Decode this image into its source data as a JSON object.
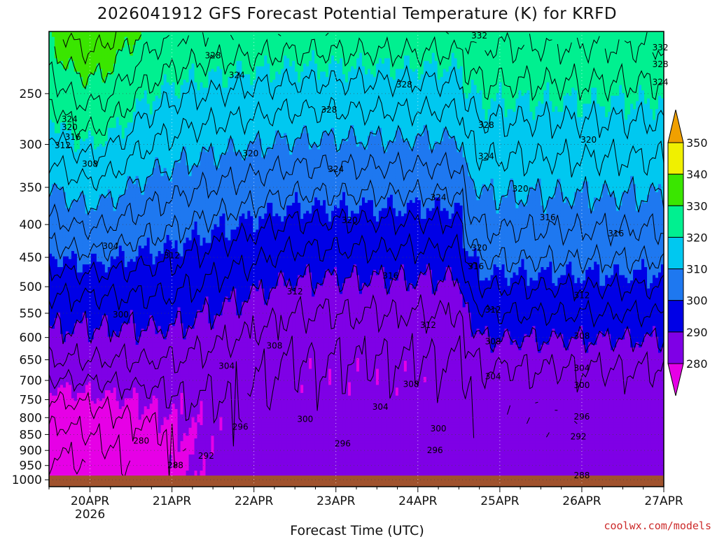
{
  "chart_data": {
    "type": "heatmap",
    "title": "2026041912 GFS Forecast Potential Temperature (K) for KRFD",
    "xlabel": "Forecast Time (UTC)",
    "ylabel": "",
    "credit": "coolwx.com/models",
    "y_ticks": [
      "250",
      "300",
      "350",
      "400",
      "450",
      "500",
      "550",
      "600",
      "650",
      "700",
      "750",
      "800",
      "850",
      "900",
      "950",
      "1000"
    ],
    "y_tick_values": [
      250,
      300,
      350,
      400,
      450,
      500,
      550,
      600,
      650,
      700,
      750,
      800,
      850,
      900,
      950,
      1000
    ],
    "ylim": [
      200,
      1025
    ],
    "y_scale": "log-pressure (inverted)",
    "x_ticks": [
      {
        "label": "20APR",
        "sub": "2026",
        "value": "2026-04-20T00"
      },
      {
        "label": "21APR",
        "sub": "",
        "value": "2026-04-21T00"
      },
      {
        "label": "22APR",
        "sub": "",
        "value": "2026-04-22T00"
      },
      {
        "label": "23APR",
        "sub": "",
        "value": "2026-04-23T00"
      },
      {
        "label": "24APR",
        "sub": "",
        "value": "2026-04-24T00"
      },
      {
        "label": "25APR",
        "sub": "",
        "value": "2026-04-25T00"
      },
      {
        "label": "26APR",
        "sub": "",
        "value": "2026-04-26T00"
      },
      {
        "label": "27APR",
        "sub": "",
        "value": "2026-04-27T00"
      }
    ],
    "xlim": [
      "2026-04-19T12",
      "2026-04-27T00"
    ],
    "grid": true,
    "colorbar": {
      "levels": [
        {
          "label": "280",
          "value": 280,
          "color": "#e600e6"
        },
        {
          "label": "290",
          "value": 290,
          "color": "#7f00e6"
        },
        {
          "label": "300",
          "value": 300,
          "color": "#0000e6"
        },
        {
          "label": "310",
          "value": 310,
          "color": "#1e78f0"
        },
        {
          "label": "320",
          "value": 320,
          "color": "#00c8f0"
        },
        {
          "label": "330",
          "value": 330,
          "color": "#00f090"
        },
        {
          "label": "340",
          "value": 340,
          "color": "#3ae600"
        },
        {
          "label": "350",
          "value": 350,
          "color": "#f0f000"
        }
      ],
      "top_color": "#f0a000",
      "bottom_color": "#e600e6"
    },
    "ground_color": "#a0522d",
    "contour_interval_K": 4,
    "contour_labels_shown": [
      {
        "value": "328",
        "t": "2026-04-21T12",
        "p": 218
      },
      {
        "value": "324",
        "t": "2026-04-21T19",
        "p": 234
      },
      {
        "value": "328",
        "t": "2026-04-23T20",
        "p": 242
      },
      {
        "value": "328",
        "t": "2026-04-22T22",
        "p": 265
      },
      {
        "value": "324",
        "t": "2026-04-19T18",
        "p": 274
      },
      {
        "value": "320",
        "t": "2026-04-19T18",
        "p": 282
      },
      {
        "value": "316",
        "t": "2026-04-19T19",
        "p": 292
      },
      {
        "value": "312",
        "t": "2026-04-19T16",
        "p": 301
      },
      {
        "value": "308",
        "t": "2026-04-20T00",
        "p": 322
      },
      {
        "value": "320",
        "t": "2026-04-21T23",
        "p": 310
      },
      {
        "value": "324",
        "t": "2026-04-23T00",
        "p": 328
      },
      {
        "value": "324",
        "t": "2026-04-24T06",
        "p": 363
      },
      {
        "value": "320",
        "t": "2026-04-23T04",
        "p": 394
      },
      {
        "value": "332",
        "t": "2026-04-24T18",
        "p": 203
      },
      {
        "value": "332",
        "t": "2026-04-26T23",
        "p": 212
      },
      {
        "value": "328",
        "t": "2026-04-26T23",
        "p": 225
      },
      {
        "value": "324",
        "t": "2026-04-26T23",
        "p": 240
      },
      {
        "value": "328",
        "t": "2026-04-24T20",
        "p": 280
      },
      {
        "value": "324",
        "t": "2026-04-24T20",
        "p": 313
      },
      {
        "value": "320",
        "t": "2026-04-26T02",
        "p": 295
      },
      {
        "value": "320",
        "t": "2026-04-25T06",
        "p": 352
      },
      {
        "value": "316",
        "t": "2026-04-25T14",
        "p": 390
      },
      {
        "value": "316",
        "t": "2026-04-26T10",
        "p": 413
      },
      {
        "value": "320",
        "t": "2026-04-24T18",
        "p": 435
      },
      {
        "value": "316",
        "t": "2026-04-24T17",
        "p": 465
      },
      {
        "value": "316",
        "t": "2026-04-23T16",
        "p": 481
      },
      {
        "value": "304",
        "t": "2026-04-20T06",
        "p": 432
      },
      {
        "value": "312",
        "t": "2026-04-21T00",
        "p": 447
      },
      {
        "value": "312",
        "t": "2026-04-22T12",
        "p": 509
      },
      {
        "value": "312",
        "t": "2026-04-26T00",
        "p": 516
      },
      {
        "value": "312",
        "t": "2026-04-24T22",
        "p": 543
      },
      {
        "value": "312",
        "t": "2026-04-24T03",
        "p": 574
      },
      {
        "value": "300",
        "t": "2026-04-20T09",
        "p": 553
      },
      {
        "value": "308",
        "t": "2026-04-22T06",
        "p": 618
      },
      {
        "value": "308",
        "t": "2026-04-24T22",
        "p": 609
      },
      {
        "value": "308",
        "t": "2026-04-26T00",
        "p": 597
      },
      {
        "value": "304",
        "t": "2026-04-21T16",
        "p": 665
      },
      {
        "value": "304",
        "t": "2026-04-26T00",
        "p": 670
      },
      {
        "value": "304",
        "t": "2026-04-24T22",
        "p": 690
      },
      {
        "value": "308",
        "t": "2026-04-23T22",
        "p": 710
      },
      {
        "value": "300",
        "t": "2026-04-26T00",
        "p": 712
      },
      {
        "value": "304",
        "t": "2026-04-23T13",
        "p": 770
      },
      {
        "value": "296",
        "t": "2026-04-26T00",
        "p": 797
      },
      {
        "value": "300",
        "t": "2026-04-22T15",
        "p": 805
      },
      {
        "value": "296",
        "t": "2026-04-21T20",
        "p": 827
      },
      {
        "value": "300",
        "t": "2026-04-24T06",
        "p": 832
      },
      {
        "value": "292",
        "t": "2026-04-25T23",
        "p": 857
      },
      {
        "value": "296",
        "t": "2026-04-23T02",
        "p": 878
      },
      {
        "value": "296",
        "t": "2026-04-24T05",
        "p": 900
      },
      {
        "value": "280",
        "t": "2026-04-20T15",
        "p": 870
      },
      {
        "value": "292",
        "t": "2026-04-21T10",
        "p": 918
      },
      {
        "value": "288",
        "t": "2026-04-21T01",
        "p": 950
      },
      {
        "value": "288",
        "t": "2026-04-26T00",
        "p": 985
      }
    ]
  }
}
